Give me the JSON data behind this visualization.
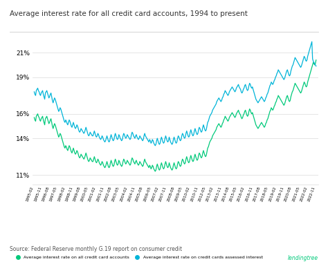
{
  "title": "Average interest rate for all credit card accounts, 1994 to present",
  "source_text": "Source: Federal Reserve monthly G.19 report on consumer credit",
  "branding": "lendingtree",
  "yticks": [
    11,
    14,
    16,
    19,
    21
  ],
  "ylim": [
    10.2,
    22.5
  ],
  "bg_color": "#ffffff",
  "grid_color": "#e0e0e0",
  "line_all_color": "#00c97a",
  "line_assessed_color": "#00b4d8",
  "legend_all": "Average interest rate on all credit card accounts",
  "legend_assessed": "Average interest rate on credit cards assessed interest",
  "xtick_labels": [
    "1995-02",
    "1995-11",
    "1996-08",
    "1997-05",
    "1998-02",
    "1998-11",
    "1999-08",
    "2000-05",
    "2001-02",
    "2001-11",
    "2002-08",
    "2003-05",
    "2004-02",
    "2004-11",
    "2005-08",
    "2006-05",
    "2007-02",
    "2007-11",
    "2008-08",
    "2009-05",
    "2010-02",
    "2010-11",
    "2012-05",
    "2013-02",
    "2013-11",
    "2014-08",
    "2015-05",
    "2016-02",
    "2016-11",
    "2017-08",
    "2018-05",
    "2019-02",
    "2019-11",
    "2020-08",
    "2021-05",
    "2022-02",
    "2022-11"
  ],
  "all_accounts": [
    15.7,
    15.5,
    15.4,
    15.8,
    15.9,
    16.0,
    15.8,
    15.7,
    15.5,
    15.4,
    15.6,
    15.7,
    15.8,
    15.5,
    15.3,
    15.1,
    15.6,
    15.7,
    15.8,
    15.6,
    15.4,
    15.2,
    15.3,
    15.5,
    15.6,
    15.3,
    15.0,
    14.8,
    15.0,
    15.2,
    15.1,
    14.9,
    14.7,
    14.5,
    14.3,
    14.1,
    14.2,
    14.4,
    14.3,
    14.1,
    13.9,
    13.7,
    13.5,
    13.3,
    13.2,
    13.4,
    13.3,
    13.1,
    13.0,
    13.2,
    13.4,
    13.3,
    13.1,
    12.9,
    12.8,
    13.0,
    13.2,
    13.0,
    12.8,
    12.7,
    12.8,
    13.0,
    12.9,
    12.7,
    12.5,
    12.4,
    12.5,
    12.7,
    12.6,
    12.5,
    12.4,
    12.3,
    12.4,
    12.6,
    12.8,
    12.6,
    12.4,
    12.2,
    12.1,
    12.2,
    12.4,
    12.3,
    12.2,
    12.1,
    12.1,
    12.3,
    12.5,
    12.3,
    12.1,
    12.0,
    12.1,
    12.3,
    12.2,
    12.0,
    11.9,
    11.8,
    11.9,
    12.1,
    12.0,
    11.8,
    11.7,
    11.6,
    11.7,
    11.9,
    12.1,
    11.9,
    11.7,
    11.6,
    11.7,
    12.0,
    12.2,
    12.0,
    11.8,
    11.7,
    11.8,
    12.1,
    12.3,
    12.1,
    11.9,
    11.8,
    11.9,
    12.2,
    12.1,
    11.9,
    11.8,
    11.7,
    11.8,
    12.1,
    12.3,
    12.2,
    12.0,
    11.9,
    12.0,
    12.2,
    12.1,
    12.0,
    11.9,
    11.8,
    11.9,
    12.2,
    12.4,
    12.3,
    12.1,
    12.0,
    11.9,
    12.1,
    12.2,
    12.0,
    11.9,
    11.8,
    11.9,
    12.1,
    12.0,
    11.9,
    11.8,
    11.7,
    11.8,
    12.1,
    12.3,
    12.1,
    12.0,
    11.9,
    11.8,
    11.7,
    11.6,
    11.8,
    11.7,
    11.5,
    11.6,
    11.8,
    11.7,
    11.5,
    11.4,
    11.3,
    11.4,
    11.7,
    11.9,
    11.7,
    11.5,
    11.4,
    11.5,
    11.8,
    12.0,
    11.8,
    11.6,
    11.5,
    11.6,
    11.9,
    12.1,
    11.9,
    11.7,
    11.6,
    11.7,
    12.0,
    11.8,
    11.6,
    11.5,
    11.4,
    11.5,
    11.8,
    12.0,
    11.8,
    11.6,
    11.5,
    11.6,
    11.9,
    12.1,
    12.0,
    11.8,
    11.7,
    11.8,
    12.1,
    12.3,
    12.2,
    12.0,
    11.9,
    12.0,
    12.3,
    12.5,
    12.3,
    12.1,
    12.0,
    12.1,
    12.4,
    12.6,
    12.4,
    12.2,
    12.1,
    12.2,
    12.5,
    12.7,
    12.5,
    12.3,
    12.2,
    12.3,
    12.6,
    12.8,
    12.7,
    12.5,
    12.4,
    12.5,
    12.8,
    13.0,
    12.8,
    12.6,
    12.5,
    12.6,
    12.9,
    13.2,
    13.3,
    13.5,
    13.7,
    13.8,
    13.9,
    14.0,
    14.2,
    14.3,
    14.4,
    14.5,
    14.6,
    14.7,
    14.9,
    15.0,
    15.1,
    15.2,
    15.1,
    15.0,
    14.9,
    15.0,
    15.2,
    15.3,
    15.5,
    15.6,
    15.8,
    15.7,
    15.6,
    15.5,
    15.4,
    15.5,
    15.7,
    15.8,
    15.9,
    16.0,
    16.1,
    16.0,
    15.9,
    15.8,
    15.7,
    15.8,
    16.0,
    16.1,
    16.2,
    16.3,
    16.1,
    16.0,
    15.9,
    15.7,
    15.6,
    15.7,
    15.9,
    16.0,
    16.2,
    16.3,
    16.1,
    15.9,
    15.8,
    15.9,
    16.2,
    16.4,
    16.3,
    16.1,
    16.0,
    16.1,
    15.9,
    15.7,
    15.5,
    15.3,
    15.1,
    15.0,
    14.9,
    14.8,
    14.9,
    15.0,
    15.1,
    15.2,
    15.3,
    15.2,
    15.1,
    15.0,
    14.9,
    15.0,
    15.2,
    15.3,
    15.5,
    15.6,
    15.8,
    16.0,
    16.2,
    16.3,
    16.5,
    16.4,
    16.3,
    16.4,
    16.6,
    16.7,
    16.9,
    17.0,
    17.2,
    17.3,
    17.5,
    17.4,
    17.3,
    17.2,
    17.1,
    17.0,
    16.9,
    16.8,
    16.7,
    16.8,
    17.0,
    17.2,
    17.4,
    17.5,
    17.3,
    17.1,
    17.0,
    17.1,
    17.4,
    17.6,
    17.8,
    17.9,
    18.1,
    18.3,
    18.5,
    18.4,
    18.3,
    18.2,
    18.1,
    18.0,
    17.9,
    17.8,
    17.7,
    17.8,
    18.0,
    18.2,
    18.4,
    18.6,
    18.5,
    18.3,
    18.2,
    18.3,
    18.6,
    18.8,
    19.0,
    19.2,
    19.4,
    19.6,
    19.8,
    20.0,
    20.2,
    20.1,
    20.0,
    20.1,
    20.4
  ],
  "assessed_interest": [
    17.8,
    17.6,
    17.5,
    17.9,
    18.0,
    18.1,
    17.9,
    17.8,
    17.6,
    17.5,
    17.7,
    17.8,
    17.9,
    17.6,
    17.4,
    17.2,
    17.7,
    17.8,
    17.9,
    17.7,
    17.5,
    17.3,
    17.4,
    17.6,
    17.7,
    17.4,
    17.1,
    16.9,
    17.1,
    17.3,
    17.2,
    17.0,
    16.8,
    16.6,
    16.4,
    16.2,
    16.3,
    16.5,
    16.4,
    16.2,
    16.0,
    15.8,
    15.6,
    15.4,
    15.3,
    15.5,
    15.4,
    15.2,
    15.1,
    15.3,
    15.5,
    15.4,
    15.2,
    15.0,
    14.9,
    15.1,
    15.3,
    15.1,
    14.9,
    14.8,
    14.9,
    15.1,
    15.0,
    14.8,
    14.6,
    14.5,
    14.6,
    14.8,
    14.7,
    14.6,
    14.5,
    14.4,
    14.5,
    14.7,
    14.9,
    14.7,
    14.5,
    14.3,
    14.2,
    14.3,
    14.5,
    14.4,
    14.3,
    14.2,
    14.2,
    14.4,
    14.6,
    14.4,
    14.2,
    14.1,
    14.2,
    14.4,
    14.3,
    14.1,
    14.0,
    13.9,
    14.0,
    14.2,
    14.1,
    13.9,
    13.8,
    13.7,
    13.8,
    14.0,
    14.2,
    14.0,
    13.8,
    13.7,
    13.8,
    14.1,
    14.3,
    14.1,
    13.9,
    13.8,
    13.9,
    14.2,
    14.4,
    14.2,
    14.0,
    13.9,
    14.0,
    14.3,
    14.2,
    14.0,
    13.9,
    13.8,
    13.9,
    14.2,
    14.4,
    14.3,
    14.1,
    14.0,
    14.1,
    14.3,
    14.2,
    14.1,
    14.0,
    13.9,
    14.0,
    14.3,
    14.5,
    14.4,
    14.2,
    14.1,
    14.0,
    14.2,
    14.3,
    14.1,
    14.0,
    13.9,
    14.0,
    14.2,
    14.1,
    14.0,
    13.9,
    13.8,
    13.9,
    14.2,
    14.4,
    14.2,
    14.1,
    14.0,
    13.9,
    13.8,
    13.7,
    13.9,
    13.8,
    13.6,
    13.7,
    13.9,
    13.8,
    13.6,
    13.5,
    13.4,
    13.5,
    13.8,
    14.0,
    13.8,
    13.6,
    13.5,
    13.6,
    13.9,
    14.1,
    13.9,
    13.7,
    13.6,
    13.7,
    14.0,
    14.2,
    14.0,
    13.8,
    13.7,
    13.8,
    14.1,
    13.9,
    13.7,
    13.6,
    13.5,
    13.6,
    13.9,
    14.1,
    13.9,
    13.7,
    13.6,
    13.7,
    14.0,
    14.2,
    14.1,
    13.9,
    13.8,
    13.9,
    14.2,
    14.4,
    14.3,
    14.1,
    14.0,
    14.1,
    14.4,
    14.6,
    14.4,
    14.2,
    14.1,
    14.2,
    14.5,
    14.7,
    14.5,
    14.3,
    14.2,
    14.3,
    14.6,
    14.8,
    14.6,
    14.4,
    14.3,
    14.4,
    14.7,
    14.9,
    14.8,
    14.6,
    14.5,
    14.6,
    14.9,
    15.1,
    14.9,
    14.7,
    14.6,
    14.7,
    15.0,
    15.3,
    15.4,
    15.6,
    15.8,
    15.9,
    16.0,
    16.1,
    16.3,
    16.4,
    16.5,
    16.6,
    16.7,
    16.8,
    17.0,
    17.1,
    17.2,
    17.3,
    17.2,
    17.1,
    17.0,
    17.1,
    17.3,
    17.4,
    17.6,
    17.7,
    17.9,
    17.8,
    17.7,
    17.6,
    17.5,
    17.6,
    17.8,
    17.9,
    18.0,
    18.1,
    18.2,
    18.1,
    18.0,
    17.9,
    17.8,
    17.9,
    18.1,
    18.2,
    18.3,
    18.4,
    18.2,
    18.1,
    18.0,
    17.8,
    17.7,
    17.8,
    18.0,
    18.1,
    18.3,
    18.4,
    18.2,
    18.0,
    17.9,
    18.0,
    18.3,
    18.5,
    18.4,
    18.2,
    18.1,
    18.2,
    18.0,
    17.8,
    17.6,
    17.4,
    17.2,
    17.1,
    17.0,
    16.9,
    17.0,
    17.1,
    17.2,
    17.3,
    17.4,
    17.3,
    17.2,
    17.1,
    17.0,
    17.1,
    17.3,
    17.4,
    17.6,
    17.7,
    17.9,
    18.1,
    18.3,
    18.4,
    18.6,
    18.5,
    18.4,
    18.5,
    18.7,
    18.8,
    19.0,
    19.1,
    19.3,
    19.4,
    19.6,
    19.5,
    19.4,
    19.3,
    19.2,
    19.1,
    19.0,
    18.9,
    18.8,
    18.9,
    19.1,
    19.3,
    19.5,
    19.6,
    19.4,
    19.2,
    19.1,
    19.2,
    19.5,
    19.7,
    19.9,
    20.0,
    20.2,
    20.4,
    20.6,
    20.5,
    20.4,
    20.3,
    20.2,
    20.1,
    20.0,
    19.9,
    19.8,
    19.9,
    20.1,
    20.3,
    20.5,
    20.7,
    20.6,
    20.4,
    20.3,
    20.4,
    20.7,
    20.9,
    21.1,
    21.3,
    21.5,
    21.7,
    21.9,
    20.5,
    20.3,
    20.2,
    20.1,
    20.0,
    19.9
  ]
}
